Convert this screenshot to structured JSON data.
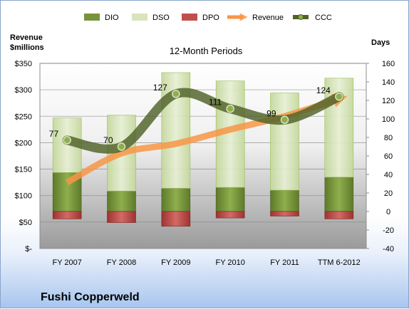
{
  "company": "Fushi Copperweld",
  "chart_data": {
    "type": "bar",
    "subtitle": "12-Month Periods",
    "left_axis_title_line1": "Revenue",
    "left_axis_title_line2": "$millions",
    "right_axis_title": "Days",
    "categories": [
      "FY 2007",
      "FY 2008",
      "FY 2009",
      "FY 2010",
      "FY 2011",
      "TTM 6-2012"
    ],
    "left_ticks": [
      "$-",
      "$50",
      "$100",
      "$150",
      "$200",
      "$250",
      "$300",
      "$350"
    ],
    "left_ylim": [
      0,
      350
    ],
    "right_ticks": [
      "-40",
      "-20",
      "0",
      "20",
      "40",
      "60",
      "80",
      "100",
      "120",
      "140",
      "160"
    ],
    "right_ylim": [
      -40,
      160
    ],
    "legend": [
      "DIO",
      "DSO",
      "DPO",
      "Revenue",
      "CCC"
    ],
    "series": [
      {
        "name": "DIO",
        "axis": "right",
        "values": [
          42,
          22,
          25,
          26,
          23,
          37
        ]
      },
      {
        "name": "DSO",
        "axis": "right",
        "values": [
          59,
          82,
          125,
          115,
          105,
          107
        ]
      },
      {
        "name": "DPO",
        "axis": "right",
        "values": [
          -8,
          -12,
          -16,
          -7,
          -5,
          -8
        ]
      },
      {
        "name": "Revenue",
        "axis": "left",
        "values": [
          125,
          180,
          198,
          225,
          250,
          283
        ]
      },
      {
        "name": "CCC",
        "axis": "right",
        "values": [
          77,
          70,
          127,
          111,
          99,
          124
        ]
      }
    ],
    "ccc_labels": [
      "77",
      "70",
      "127",
      "111",
      "99",
      "124"
    ],
    "colors": {
      "dio": "#77933c",
      "dso": "#d7e4bd",
      "dpo": "#c0504d",
      "revenue": "#f79646",
      "ccc": "#4f6228"
    }
  }
}
